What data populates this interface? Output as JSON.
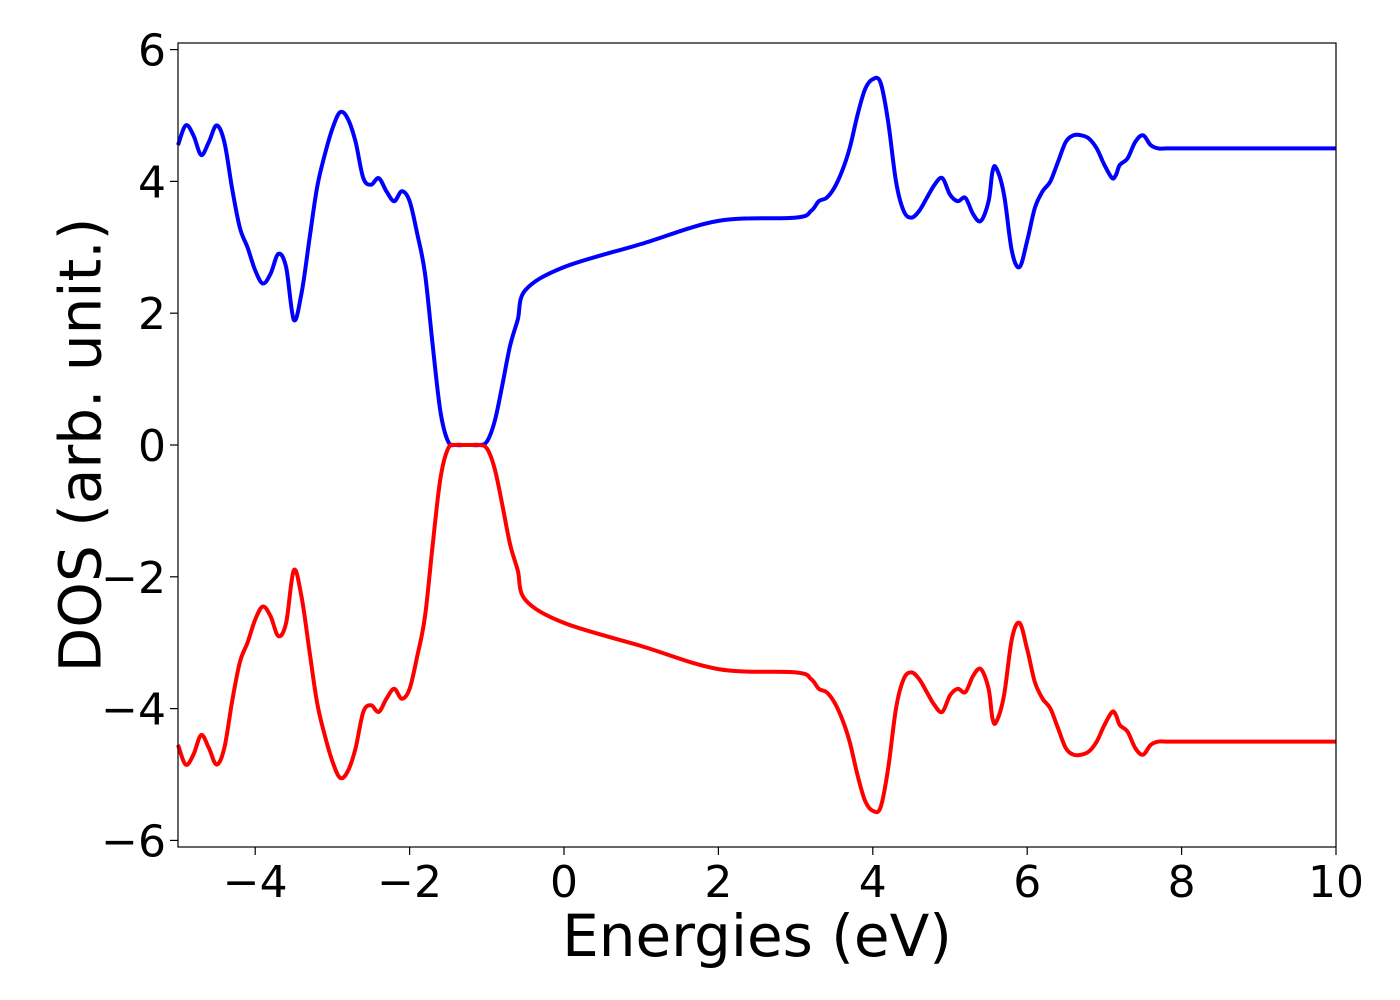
{
  "chart_data": {
    "type": "line",
    "title": "",
    "xlabel": "Energies (eV)",
    "ylabel": "DOS (arb. unit.)",
    "xlim": [
      -5,
      10
    ],
    "ylim": [
      -6.1,
      6.1
    ],
    "x_ticks": [
      -4,
      -2,
      0,
      2,
      4,
      6,
      8,
      10
    ],
    "y_ticks": [
      -6,
      -4,
      -2,
      0,
      2,
      4,
      6
    ],
    "x_tick_labels": [
      "−4",
      "−2",
      "0",
      "2",
      "4",
      "6",
      "8",
      "10"
    ],
    "y_tick_labels": [
      "−6",
      "−4",
      "−2",
      "0",
      "2",
      "4",
      "6"
    ],
    "grid": false,
    "legend": "none",
    "series": [
      {
        "color": "#0000ff",
        "x": [
          -5.0,
          -4.9,
          -4.8,
          -4.7,
          -4.6,
          -4.5,
          -4.4,
          -4.3,
          -4.2,
          -4.1,
          -4.0,
          -3.9,
          -3.8,
          -3.7,
          -3.6,
          -3.5,
          -3.4,
          -3.3,
          -3.2,
          -3.1,
          -3.0,
          -2.9,
          -2.8,
          -2.7,
          -2.6,
          -2.5,
          -2.4,
          -2.3,
          -2.2,
          -2.1,
          -2.0,
          -1.9,
          -1.8,
          -1.7,
          -1.6,
          -1.5,
          -1.4,
          -1.3,
          -1.2,
          -1.1,
          -1.0,
          -0.9,
          -0.8,
          -0.7,
          -0.6,
          -0.5,
          0.0,
          1.0,
          2.0,
          3.0,
          3.2,
          3.3,
          3.4,
          3.5,
          3.6,
          3.7,
          3.8,
          3.9,
          4.0,
          4.1,
          4.2,
          4.3,
          4.4,
          4.5,
          4.6,
          4.7,
          4.8,
          4.9,
          5.0,
          5.1,
          5.2,
          5.3,
          5.4,
          5.5,
          5.55,
          5.6,
          5.7,
          5.8,
          5.9,
          6.0,
          6.1,
          6.2,
          6.3,
          6.4,
          6.5,
          6.6,
          6.7,
          6.8,
          6.9,
          7.0,
          7.1,
          7.15,
          7.2,
          7.3,
          7.4,
          7.5,
          7.6,
          7.7,
          7.8,
          7.9,
          8.0,
          8.1,
          8.2,
          8.3,
          8.4,
          8.5,
          8.6,
          8.7,
          8.8,
          8.9,
          9.0,
          9.1,
          9.2,
          9.3,
          9.4,
          9.5,
          9.6,
          9.7,
          9.8,
          9.9,
          10.0
        ],
        "y": [
          4.55,
          4.85,
          4.7,
          4.4,
          4.6,
          4.85,
          4.6,
          3.9,
          3.3,
          3.0,
          2.65,
          2.45,
          2.6,
          2.9,
          2.7,
          1.9,
          2.3,
          3.1,
          3.9,
          4.4,
          4.8,
          5.05,
          4.95,
          4.6,
          4.05,
          3.95,
          4.05,
          3.85,
          3.7,
          3.85,
          3.7,
          3.2,
          2.6,
          1.5,
          0.5,
          0.05,
          0.0,
          0.0,
          0.0,
          0.0,
          0.05,
          0.35,
          0.9,
          1.5,
          1.9,
          2.35,
          2.7,
          3.05,
          3.4,
          3.45,
          3.55,
          3.7,
          3.75,
          3.9,
          4.15,
          4.5,
          5.0,
          5.4,
          5.55,
          5.5,
          4.9,
          4.0,
          3.55,
          3.45,
          3.55,
          3.75,
          3.95,
          4.05,
          3.8,
          3.7,
          3.75,
          3.5,
          3.4,
          3.7,
          4.15,
          4.2,
          3.8,
          2.95,
          2.7,
          3.1,
          3.6,
          3.85,
          4.0,
          4.3,
          4.6,
          4.7,
          4.7,
          4.65,
          4.5,
          4.25,
          4.05,
          4.1,
          4.25,
          4.35,
          4.6,
          4.7,
          4.55,
          4.5,
          4.5,
          4.5,
          4.5,
          4.5,
          4.5,
          4.5,
          4.5,
          4.5,
          4.5,
          4.5,
          4.5,
          4.5,
          4.5,
          4.5,
          4.5,
          4.5,
          4.5,
          4.5,
          4.5,
          4.5,
          4.5,
          4.5,
          4.5
        ]
      },
      {
        "color": "#ff0000",
        "x": [
          -5.0,
          -4.9,
          -4.8,
          -4.7,
          -4.6,
          -4.5,
          -4.4,
          -4.3,
          -4.2,
          -4.1,
          -4.0,
          -3.9,
          -3.8,
          -3.7,
          -3.6,
          -3.5,
          -3.4,
          -3.3,
          -3.2,
          -3.1,
          -3.0,
          -2.9,
          -2.8,
          -2.7,
          -2.6,
          -2.5,
          -2.4,
          -2.3,
          -2.2,
          -2.1,
          -2.0,
          -1.9,
          -1.8,
          -1.7,
          -1.6,
          -1.5,
          -1.4,
          -1.3,
          -1.2,
          -1.1,
          -1.0,
          -0.9,
          -0.8,
          -0.7,
          -0.6,
          -0.5,
          0.0,
          1.0,
          2.0,
          3.0,
          3.2,
          3.3,
          3.4,
          3.5,
          3.6,
          3.7,
          3.8,
          3.9,
          4.0,
          4.1,
          4.2,
          4.3,
          4.4,
          4.5,
          4.6,
          4.7,
          4.8,
          4.9,
          5.0,
          5.1,
          5.2,
          5.3,
          5.4,
          5.5,
          5.55,
          5.6,
          5.7,
          5.8,
          5.9,
          6.0,
          6.1,
          6.2,
          6.3,
          6.4,
          6.5,
          6.6,
          6.7,
          6.8,
          6.9,
          7.0,
          7.1,
          7.15,
          7.2,
          7.3,
          7.4,
          7.5,
          7.6,
          7.7,
          7.8,
          7.9,
          8.0,
          8.1,
          8.2,
          8.3,
          8.4,
          8.5,
          8.6,
          8.7,
          8.8,
          8.9,
          9.0,
          9.1,
          9.2,
          9.3,
          9.4,
          9.5,
          9.6,
          9.7,
          9.8,
          9.9,
          10.0
        ],
        "y": [
          -4.55,
          -4.85,
          -4.7,
          -4.4,
          -4.6,
          -4.85,
          -4.6,
          -3.9,
          -3.3,
          -3.0,
          -2.65,
          -2.45,
          -2.6,
          -2.9,
          -2.7,
          -1.9,
          -2.3,
          -3.1,
          -3.9,
          -4.4,
          -4.8,
          -5.05,
          -4.95,
          -4.6,
          -4.05,
          -3.95,
          -4.05,
          -3.85,
          -3.7,
          -3.85,
          -3.7,
          -3.2,
          -2.6,
          -1.5,
          -0.5,
          -0.05,
          0.0,
          0.0,
          0.0,
          0.0,
          -0.05,
          -0.35,
          -0.9,
          -1.5,
          -1.9,
          -2.35,
          -2.7,
          -3.05,
          -3.4,
          -3.45,
          -3.55,
          -3.7,
          -3.75,
          -3.9,
          -4.15,
          -4.5,
          -5.0,
          -5.4,
          -5.55,
          -5.5,
          -4.9,
          -4.0,
          -3.55,
          -3.45,
          -3.55,
          -3.75,
          -3.95,
          -4.05,
          -3.8,
          -3.7,
          -3.75,
          -3.5,
          -3.4,
          -3.7,
          -4.15,
          -4.2,
          -3.8,
          -2.95,
          -2.7,
          -3.1,
          -3.6,
          -3.85,
          -4.0,
          -4.3,
          -4.6,
          -4.7,
          -4.7,
          -4.65,
          -4.5,
          -4.25,
          -4.05,
          -4.1,
          -4.25,
          -4.35,
          -4.6,
          -4.7,
          -4.55,
          -4.5,
          -4.5,
          -4.5,
          -4.5,
          -4.5,
          -4.5,
          -4.5,
          -4.5,
          -4.5,
          -4.5,
          -4.5,
          -4.5,
          -4.5,
          -4.5,
          -4.5,
          -4.5,
          -4.5,
          -4.5,
          -4.5,
          -4.5,
          -4.5,
          -4.5,
          -4.5,
          -4.5
        ]
      }
    ]
  }
}
